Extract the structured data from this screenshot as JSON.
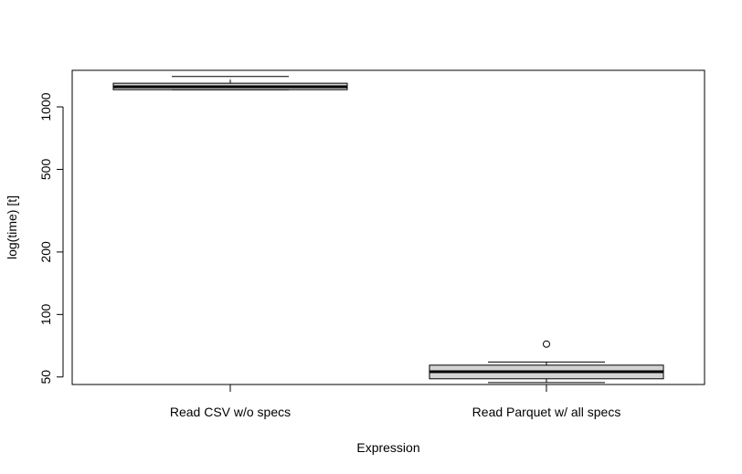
{
  "chart_data": {
    "type": "boxplot",
    "title": "",
    "xlabel": "Expression",
    "ylabel": "log(time) [t]",
    "y_scale": "log",
    "ylim": [
      46,
      1500
    ],
    "y_ticks": [
      50,
      100,
      200,
      500,
      1000
    ],
    "y_tick_labels": [
      "50",
      "100",
      "200",
      "500",
      "1000"
    ],
    "categories": [
      "Read CSV w/o specs",
      "Read Parquet w/ all specs"
    ],
    "boxes": [
      {
        "category": "Read CSV w/o specs",
        "whisker_low": 1210,
        "q1": 1210,
        "median": 1250,
        "q3": 1300,
        "whisker_high": 1400,
        "outliers": []
      },
      {
        "category": "Read Parquet w/ all specs",
        "whisker_low": 47,
        "q1": 49,
        "median": 53,
        "q3": 57,
        "whisker_high": 59,
        "outliers": [
          72
        ]
      }
    ],
    "box_fill": "#d3d3d3",
    "grid": false,
    "legend": "none"
  }
}
